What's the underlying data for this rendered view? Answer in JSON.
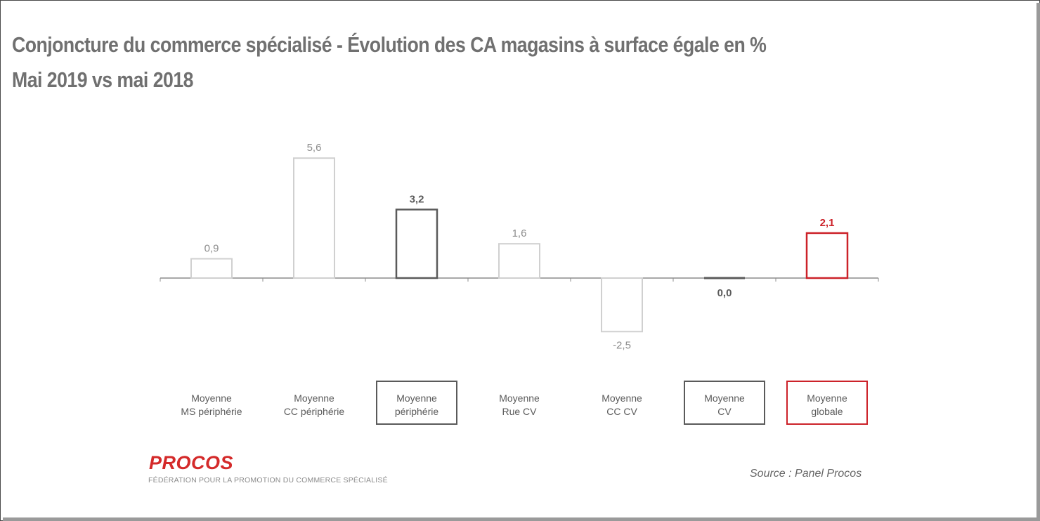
{
  "title": "Conjoncture du commerce spécialisé - Évolution des CA magasins à surface égale en %",
  "subtitle": "Mai 2019 vs mai 2018",
  "chart_data": {
    "type": "bar",
    "categories": [
      "Moyenne\nMS périphérie",
      "Moyenne\nCC périphérie",
      "Moyenne\npériphérie",
      "Moyenne\nRue CV",
      "Moyenne\nCC CV",
      "Moyenne\nCV",
      "Moyenne\nglobale"
    ],
    "values": [
      0.9,
      5.6,
      3.2,
      1.6,
      -2.5,
      0.0,
      2.1
    ],
    "value_labels": [
      "0,9",
      "5,6",
      "3,2",
      "1,6",
      "-2,5",
      "0,0",
      "2,1"
    ],
    "ylim": [
      -3,
      6
    ],
    "grid": false,
    "legend": "none",
    "colors": {
      "light_bar": "#d0d0d0",
      "dark_bar": "#5a5a5a",
      "highlight_bar": "#cc2229",
      "light_label": "#8c8c8c",
      "dark_label": "#5a5a5a",
      "axis": "#8c8c8c"
    },
    "bar_styles": [
      "light",
      "light",
      "dark",
      "light",
      "light",
      "dark",
      "highlight"
    ],
    "boxed_categories": [
      false,
      false,
      true,
      false,
      false,
      true,
      true
    ]
  },
  "logo": {
    "name": "PROCOS",
    "tagline": "FÉDÉRATION POUR LA PROMOTION DU COMMERCE SPÉCIALISÉ"
  },
  "source": "Source : Panel Procos"
}
